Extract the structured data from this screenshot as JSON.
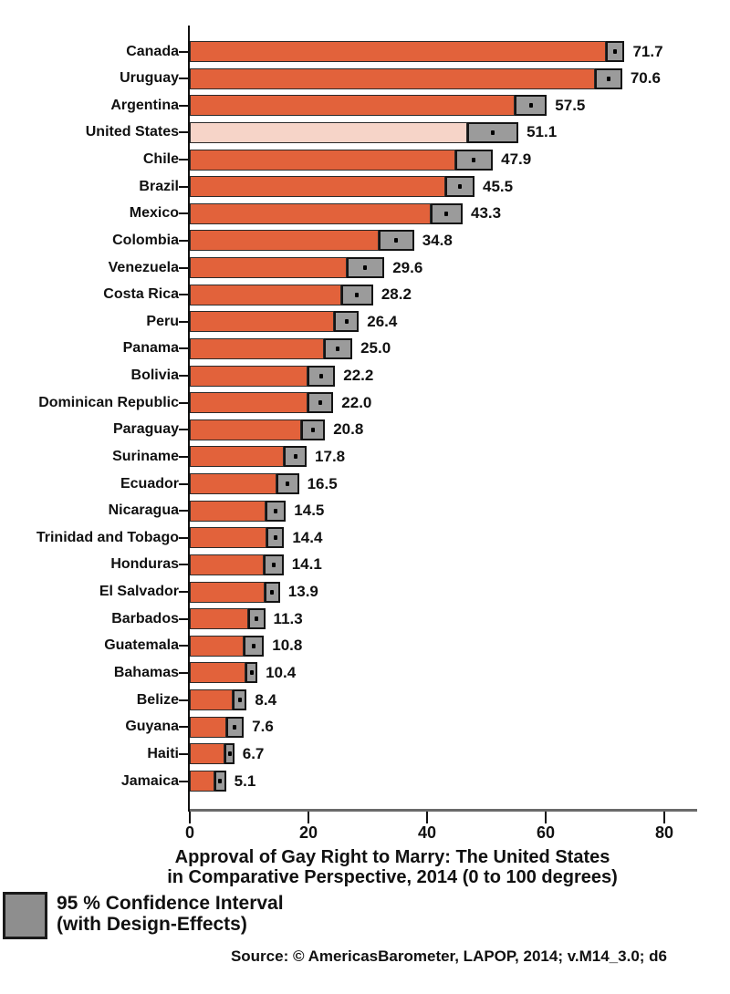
{
  "chart_data": {
    "type": "bar",
    "orientation": "horizontal",
    "title": "Approval of Gay Right to Marry: The United States in Comparative Perspective, 2014 (0 to 100 degrees)",
    "title_lines": [
      "Approval of Gay Right to Marry: The United States",
      "in Comparative Perspective, 2014 (0 to 100 degrees)"
    ],
    "x_ticks": [
      0,
      20,
      40,
      60,
      80
    ],
    "xlim": [
      0,
      85.4
    ],
    "grid": false,
    "legend_position": "bottom-left",
    "rows": [
      {
        "country": "Canada",
        "value": 71.7,
        "value_label": "71.7",
        "ci_half": 1.6,
        "highlight": false
      },
      {
        "country": "Uruguay",
        "value": 70.6,
        "value_label": "70.6",
        "ci_half": 2.3,
        "highlight": false
      },
      {
        "country": "Argentina",
        "value": 57.5,
        "value_label": "57.5",
        "ci_half": 2.7,
        "highlight": false
      },
      {
        "country": "United States",
        "value": 51.1,
        "value_label": "51.1",
        "ci_half": 4.3,
        "highlight": true
      },
      {
        "country": "Chile",
        "value": 47.9,
        "value_label": "47.9",
        "ci_half": 3.2,
        "highlight": false
      },
      {
        "country": "Brazil",
        "value": 45.5,
        "value_label": "45.5",
        "ci_half": 2.5,
        "highlight": false
      },
      {
        "country": "Mexico",
        "value": 43.3,
        "value_label": "43.3",
        "ci_half": 2.7,
        "highlight": false
      },
      {
        "country": "Colombia",
        "value": 34.8,
        "value_label": "34.8",
        "ci_half": 3.0,
        "highlight": false
      },
      {
        "country": "Venezuela",
        "value": 29.6,
        "value_label": "29.6",
        "ci_half": 3.2,
        "highlight": false
      },
      {
        "country": "Costa Rica",
        "value": 28.2,
        "value_label": "28.2",
        "ci_half": 2.7,
        "highlight": false
      },
      {
        "country": "Peru",
        "value": 26.4,
        "value_label": "26.4",
        "ci_half": 2.1,
        "highlight": false
      },
      {
        "country": "Panama",
        "value": 25.0,
        "value_label": "25.0",
        "ci_half": 2.4,
        "highlight": false
      },
      {
        "country": "Bolivia",
        "value": 22.2,
        "value_label": "22.2",
        "ci_half": 2.3,
        "highlight": false
      },
      {
        "country": "Dominican Republic",
        "value": 22.0,
        "value_label": "22.0",
        "ci_half": 2.2,
        "highlight": false
      },
      {
        "country": "Paraguay",
        "value": 20.8,
        "value_label": "20.8",
        "ci_half": 2.0,
        "highlight": false
      },
      {
        "country": "Suriname",
        "value": 17.8,
        "value_label": "17.8",
        "ci_half": 1.9,
        "highlight": false
      },
      {
        "country": "Ecuador",
        "value": 16.5,
        "value_label": "16.5",
        "ci_half": 1.9,
        "highlight": false
      },
      {
        "country": "Nicaragua",
        "value": 14.5,
        "value_label": "14.5",
        "ci_half": 1.7,
        "highlight": false
      },
      {
        "country": "Trinidad and Tobago",
        "value": 14.4,
        "value_label": "14.4",
        "ci_half": 1.5,
        "highlight": false
      },
      {
        "country": "Honduras",
        "value": 14.1,
        "value_label": "14.1",
        "ci_half": 1.7,
        "highlight": false
      },
      {
        "country": "El Salvador",
        "value": 13.9,
        "value_label": "13.9",
        "ci_half": 1.3,
        "highlight": false
      },
      {
        "country": "Barbados",
        "value": 11.3,
        "value_label": "11.3",
        "ci_half": 1.4,
        "highlight": false
      },
      {
        "country": "Guatemala",
        "value": 10.8,
        "value_label": "10.8",
        "ci_half": 1.7,
        "highlight": false
      },
      {
        "country": "Bahamas",
        "value": 10.4,
        "value_label": "10.4",
        "ci_half": 1.0,
        "highlight": false
      },
      {
        "country": "Belize",
        "value": 8.4,
        "value_label": "8.4",
        "ci_half": 1.2,
        "highlight": false
      },
      {
        "country": "Guyana",
        "value": 7.6,
        "value_label": "7.6",
        "ci_half": 1.5,
        "highlight": false
      },
      {
        "country": "Haiti",
        "value": 6.7,
        "value_label": "6.7",
        "ci_half": 0.8,
        "highlight": false
      },
      {
        "country": "Jamaica",
        "value": 5.1,
        "value_label": "5.1",
        "ci_half": 1.0,
        "highlight": false
      }
    ],
    "colors": {
      "bar": "#E2623B",
      "highlight_bar": "#F6D4C8",
      "ci_box": "#9B9B9B",
      "legend_swatch": "#8E8E8E",
      "axis_line": "#6A6A6A",
      "text": "#111111"
    },
    "legend": {
      "lines": [
        "95 % Confidence Interval",
        "(with Design-Effects)"
      ]
    },
    "source": "Source: © AmericasBarometer, LAPOP, 2014; v.M14_3.0; d6"
  }
}
